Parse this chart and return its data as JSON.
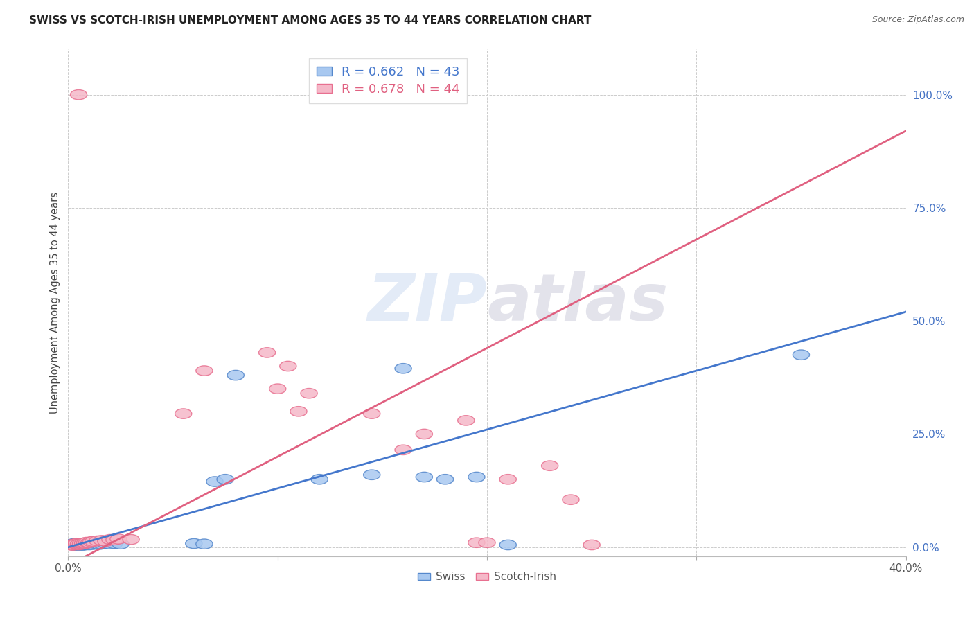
{
  "title": "SWISS VS SCOTCH-IRISH UNEMPLOYMENT AMONG AGES 35 TO 44 YEARS CORRELATION CHART",
  "source": "Source: ZipAtlas.com",
  "ylabel": "Unemployment Among Ages 35 to 44 years",
  "xlim": [
    0.0,
    0.4
  ],
  "ylim": [
    -0.02,
    1.1
  ],
  "plot_ylim": [
    0.0,
    1.1
  ],
  "xticks": [
    0.0,
    0.1,
    0.2,
    0.3,
    0.4
  ],
  "yticks_right": [
    0.0,
    0.25,
    0.5,
    0.75,
    1.0
  ],
  "ytick_right_labels": [
    "0.0%",
    "25.0%",
    "50.0%",
    "75.0%",
    "100.0%"
  ],
  "xtick_labels": [
    "0.0%",
    "",
    "",
    "",
    "40.0%"
  ],
  "swiss_R": 0.662,
  "swiss_N": 43,
  "scotch_R": 0.678,
  "scotch_N": 44,
  "blue_fill": "#A8C8F0",
  "pink_fill": "#F5B8C8",
  "blue_edge": "#5588CC",
  "pink_edge": "#E87090",
  "blue_line": "#4477CC",
  "pink_line": "#E06080",
  "legend_label_swiss": "Swiss",
  "legend_label_scotch": "Scotch-Irish",
  "swiss_line_x0": 0.0,
  "swiss_line_y0": 0.0,
  "swiss_line_x1": 0.4,
  "swiss_line_y1": 0.52,
  "scotch_line_x0": 0.0,
  "scotch_line_y0": -0.04,
  "scotch_line_x1": 0.4,
  "scotch_line_y1": 0.92,
  "swiss_pts_x": [
    0.001,
    0.002,
    0.002,
    0.003,
    0.003,
    0.003,
    0.004,
    0.004,
    0.004,
    0.005,
    0.005,
    0.005,
    0.006,
    0.006,
    0.007,
    0.007,
    0.007,
    0.008,
    0.008,
    0.009,
    0.01,
    0.011,
    0.012,
    0.013,
    0.015,
    0.016,
    0.018,
    0.02,
    0.022,
    0.025,
    0.06,
    0.065,
    0.07,
    0.075,
    0.08,
    0.12,
    0.145,
    0.16,
    0.17,
    0.18,
    0.195,
    0.21,
    0.35
  ],
  "swiss_pts_y": [
    0.006,
    0.005,
    0.007,
    0.004,
    0.006,
    0.008,
    0.005,
    0.007,
    0.009,
    0.004,
    0.006,
    0.008,
    0.005,
    0.007,
    0.004,
    0.006,
    0.008,
    0.005,
    0.007,
    0.006,
    0.005,
    0.007,
    0.006,
    0.008,
    0.006,
    0.007,
    0.008,
    0.007,
    0.008,
    0.007,
    0.008,
    0.007,
    0.145,
    0.15,
    0.38,
    0.15,
    0.16,
    0.395,
    0.155,
    0.15,
    0.155,
    0.005,
    0.425
  ],
  "scotch_pts_x": [
    0.001,
    0.002,
    0.002,
    0.003,
    0.003,
    0.004,
    0.004,
    0.005,
    0.005,
    0.006,
    0.006,
    0.007,
    0.007,
    0.008,
    0.008,
    0.009,
    0.01,
    0.011,
    0.012,
    0.014,
    0.016,
    0.018,
    0.02,
    0.022,
    0.024,
    0.03,
    0.055,
    0.065,
    0.095,
    0.1,
    0.105,
    0.11,
    0.115,
    0.145,
    0.16,
    0.17,
    0.19,
    0.195,
    0.2,
    0.21,
    0.23,
    0.24,
    0.25,
    0.005
  ],
  "scotch_pts_y": [
    0.005,
    0.006,
    0.004,
    0.007,
    0.005,
    0.006,
    0.008,
    0.005,
    0.007,
    0.006,
    0.008,
    0.007,
    0.009,
    0.008,
    0.01,
    0.011,
    0.01,
    0.012,
    0.013,
    0.014,
    0.015,
    0.013,
    0.017,
    0.016,
    0.018,
    0.017,
    0.295,
    0.39,
    0.43,
    0.35,
    0.4,
    0.3,
    0.34,
    0.295,
    0.215,
    0.25,
    0.28,
    0.01,
    0.01,
    0.15,
    0.18,
    0.105,
    0.005,
    1.0
  ]
}
